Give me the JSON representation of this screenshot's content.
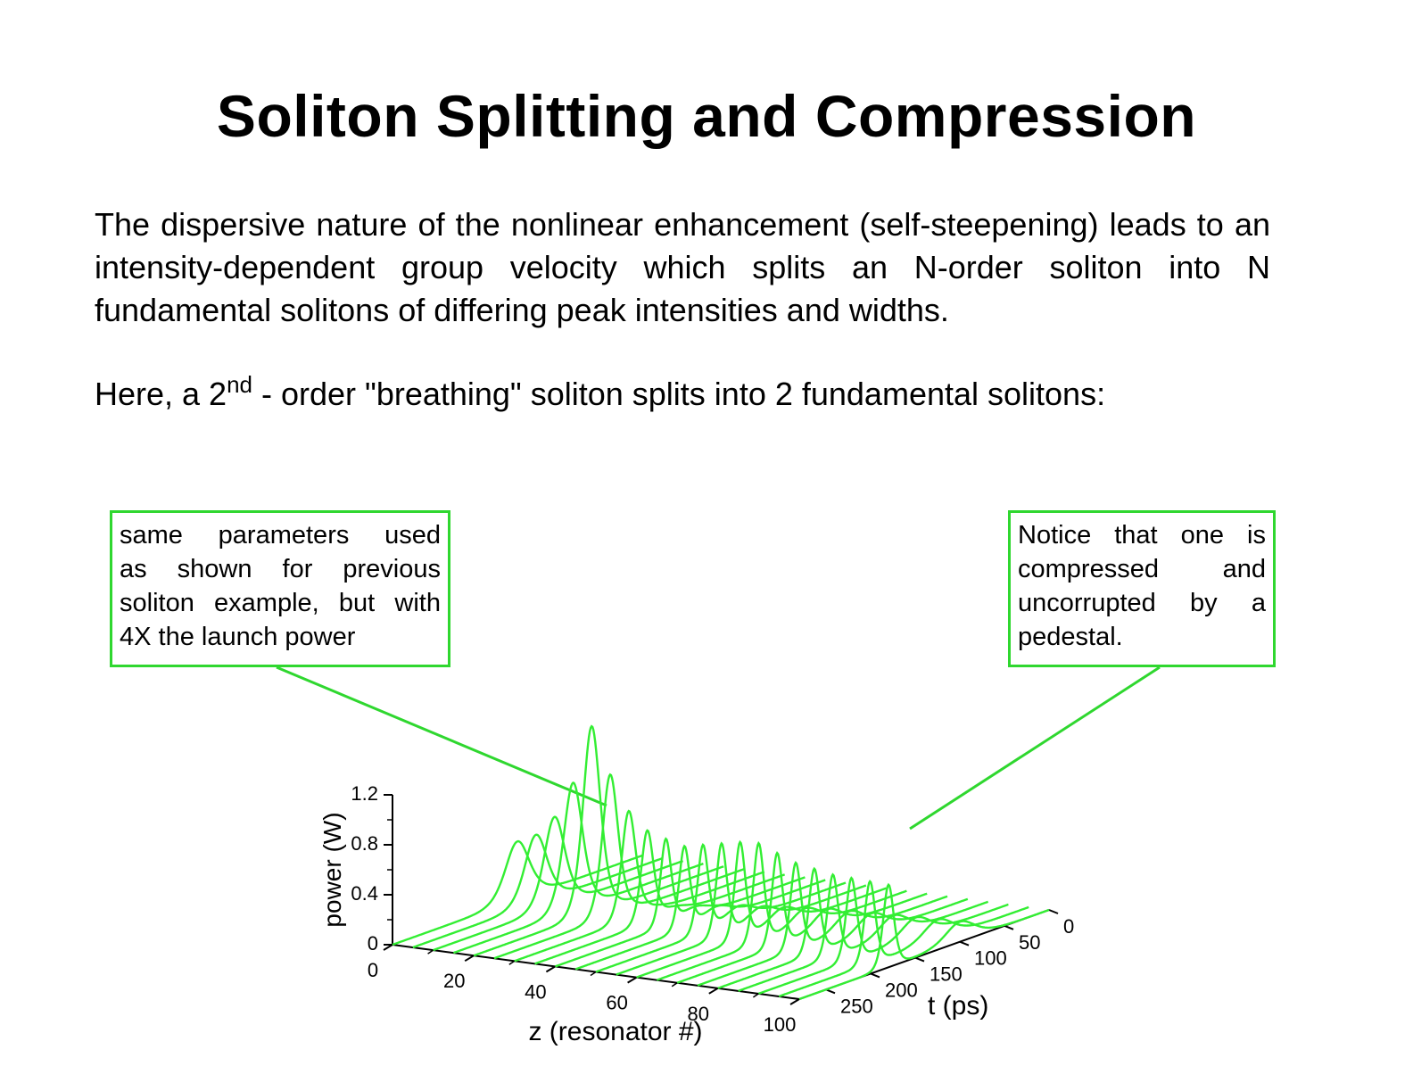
{
  "slide": {
    "title": "Soliton Splitting and Compression",
    "paragraph1": "The dispersive nature of the nonlinear enhancement (self-steepening) leads to an intensity-dependent group velocity which splits an N-order soliton into N fundamental solitons of differing peak intensities and widths.",
    "paragraph2_pre": "Here, a 2",
    "paragraph2_sup": "nd",
    "paragraph2_post": " - order \"breathing\" soliton splits into 2 fundamental solitons:"
  },
  "callouts": {
    "left_lines": [
      "same parameters used",
      "as shown for previous",
      "soliton example, but with",
      "4X the launch power"
    ],
    "right_lines": [
      "Notice that one is",
      "compressed and",
      "uncorrupted by a",
      "pedestal."
    ]
  },
  "colors": {
    "accent": "#2fd72f",
    "trace": "#33ee33",
    "text": "#000000"
  },
  "chart_data": {
    "type": "waterfall-3d-line",
    "ylabel": "power (W)",
    "xlabel": "z (resonator #)",
    "tlabel": "t (ps)",
    "y_ticks": [
      "0",
      "0.4",
      "0.8",
      "1.2"
    ],
    "z_ticks": [
      "0",
      "20",
      "40",
      "60",
      "80",
      "100"
    ],
    "t_ticks": [
      "0",
      "50",
      "100",
      "150",
      "200",
      "250"
    ],
    "ylim": [
      0,
      1.2
    ],
    "zlim": [
      0,
      100
    ],
    "tlim": [
      0,
      280
    ],
    "z_values": [
      0,
      5,
      10,
      15,
      20,
      25,
      30,
      35,
      40,
      45,
      50,
      55,
      60,
      65,
      70,
      75,
      80,
      85,
      90,
      95,
      100
    ],
    "peak_power": [
      0.47,
      0.55,
      0.72,
      1.02,
      1.5,
      1.13,
      0.86,
      0.73,
      0.69,
      0.66,
      0.7,
      0.74,
      0.78,
      0.8,
      0.75,
      0.7,
      0.68,
      0.66,
      0.66,
      0.66,
      0.66
    ],
    "second_peak_power": [
      0.0,
      0.0,
      0.0,
      0.0,
      0.0,
      0.02,
      0.04,
      0.06,
      0.08,
      0.1,
      0.12,
      0.13,
      0.14,
      0.15,
      0.16,
      0.16,
      0.16,
      0.16,
      0.16,
      0.16,
      0.16
    ],
    "pulse_center_t": 140
  }
}
